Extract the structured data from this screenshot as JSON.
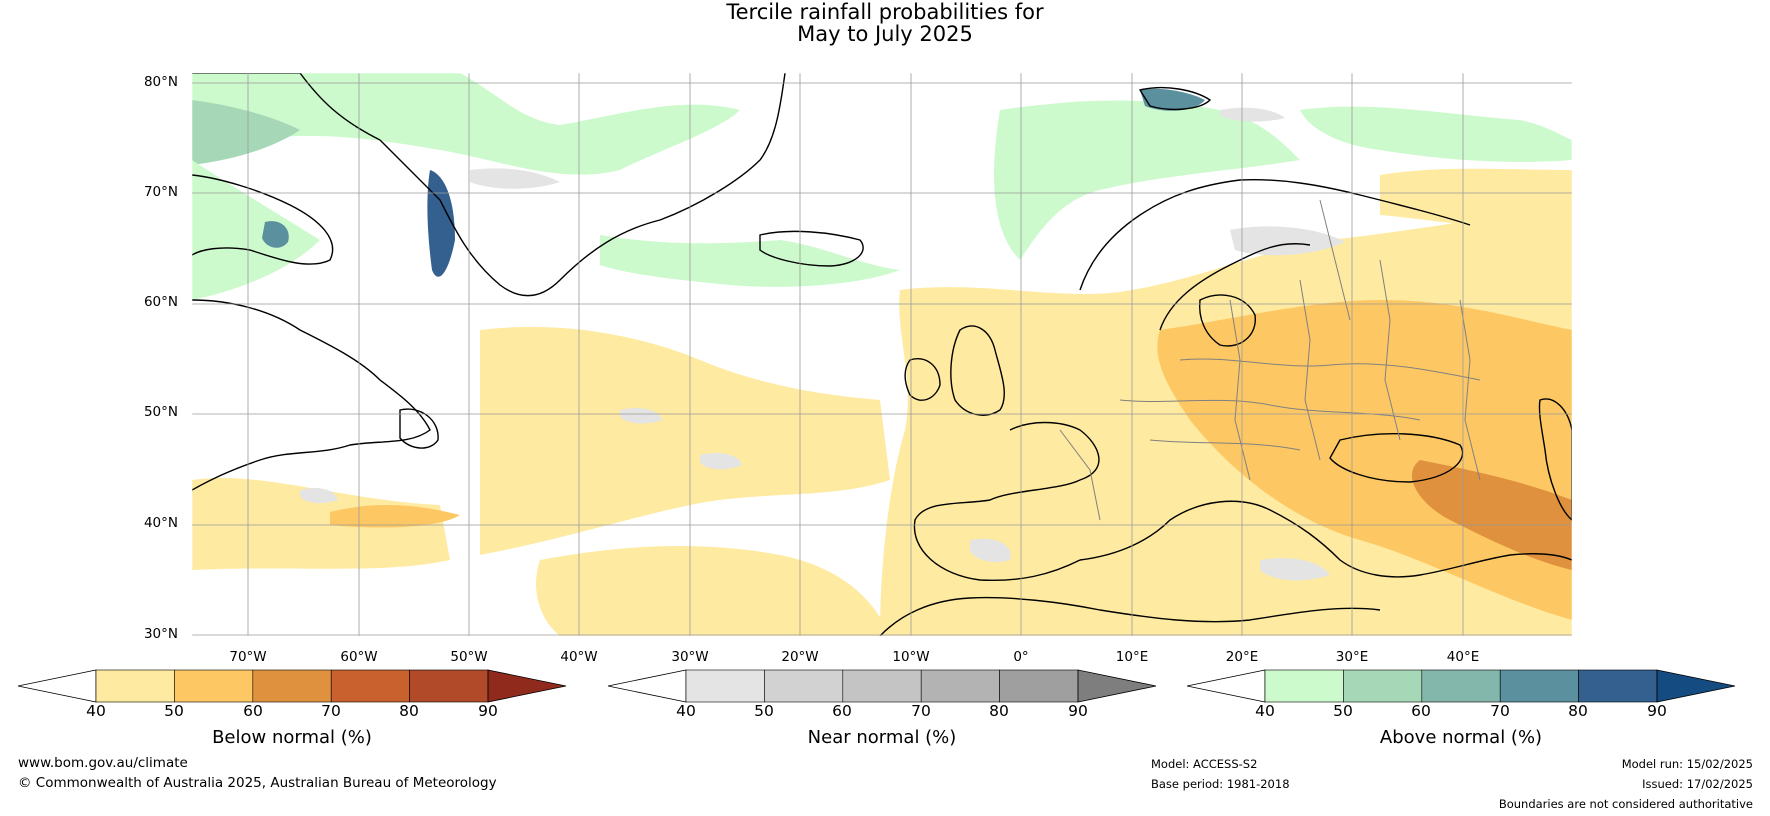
{
  "title": {
    "line1": "Tercile rainfall probabilities for",
    "line2": "May to July 2025"
  },
  "map": {
    "latitude_labels": [
      "80°N",
      "70°N",
      "60°N",
      "50°N",
      "40°N",
      "30°N"
    ],
    "longitude_labels": [
      "70°W",
      "60°W",
      "50°W",
      "40°W",
      "30°W",
      "20°W",
      "10°W",
      "0°",
      "10°E",
      "20°E",
      "30°E",
      "40°E"
    ],
    "land_color": "#ffffff",
    "coastline_color": "#000000",
    "border_color": "#808080"
  },
  "colorbars": [
    {
      "title": "Below normal (%)",
      "ticks": [
        "40",
        "50",
        "60",
        "70",
        "80",
        "90"
      ],
      "colors": [
        "#ffffff",
        "#feeaa0",
        "#fdc864",
        "#e0913e",
        "#c9612e",
        "#b04a28",
        "#8f2a1d"
      ]
    },
    {
      "title": "Near normal (%)",
      "ticks": [
        "40",
        "50",
        "60",
        "70",
        "80",
        "90"
      ],
      "colors": [
        "#ffffff",
        "#e4e4e4",
        "#d2d2d2",
        "#c4c4c4",
        "#b3b3b3",
        "#9f9f9f",
        "#7e7e7e"
      ]
    },
    {
      "title": "Above normal (%)",
      "ticks": [
        "40",
        "50",
        "60",
        "70",
        "80",
        "90"
      ],
      "colors": [
        "#ffffff",
        "#ccfacc",
        "#a6d8b7",
        "#84b7ab",
        "#5b909f",
        "#33608e",
        "#144b80"
      ]
    }
  ],
  "footer": {
    "website": "www.bom.gov.au/climate",
    "copyright": "© Commonwealth of Australia 2025, Australian Bureau of Meteorology",
    "model": "Model: ACCESS-S2",
    "base_period": "Base period: 1981-2018",
    "model_run": "Model run: 15/02/2025",
    "issued": "Issued: 17/02/2025",
    "disclaimer": "Boundaries are not considered authoritative"
  }
}
